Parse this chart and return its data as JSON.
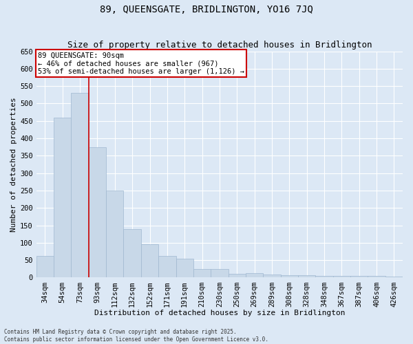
{
  "title": "89, QUEENSGATE, BRIDLINGTON, YO16 7JQ",
  "subtitle": "Size of property relative to detached houses in Bridlington",
  "xlabel": "Distribution of detached houses by size in Bridlington",
  "ylabel": "Number of detached properties",
  "categories": [
    "34sqm",
    "54sqm",
    "73sqm",
    "93sqm",
    "112sqm",
    "132sqm",
    "152sqm",
    "171sqm",
    "191sqm",
    "210sqm",
    "230sqm",
    "250sqm",
    "269sqm",
    "289sqm",
    "308sqm",
    "328sqm",
    "348sqm",
    "367sqm",
    "387sqm",
    "406sqm",
    "426sqm"
  ],
  "values": [
    62,
    460,
    530,
    375,
    250,
    140,
    95,
    63,
    55,
    25,
    25,
    10,
    12,
    8,
    7,
    6,
    5,
    4,
    5,
    4,
    3
  ],
  "bar_color": "#c8d8e8",
  "bar_edge_color": "#a0b8d0",
  "property_line_x": 2.5,
  "property_line_color": "#cc0000",
  "annotation_text": "89 QUEENSGATE: 90sqm\n← 46% of detached houses are smaller (967)\n53% of semi-detached houses are larger (1,126) →",
  "annotation_box_color": "#cc0000",
  "annotation_bg_color": "white",
  "ylim": [
    0,
    650
  ],
  "yticks": [
    0,
    50,
    100,
    150,
    200,
    250,
    300,
    350,
    400,
    450,
    500,
    550,
    600,
    650
  ],
  "footer_line1": "Contains HM Land Registry data © Crown copyright and database right 2025.",
  "footer_line2": "Contains public sector information licensed under the Open Government Licence v3.0.",
  "bg_color": "#dce8f5",
  "plot_bg_color": "#dce8f5",
  "grid_color": "#ffffff",
  "title_fontsize": 10,
  "subtitle_fontsize": 9,
  "axis_label_fontsize": 8,
  "tick_fontsize": 7.5,
  "annot_fontsize": 7.5
}
